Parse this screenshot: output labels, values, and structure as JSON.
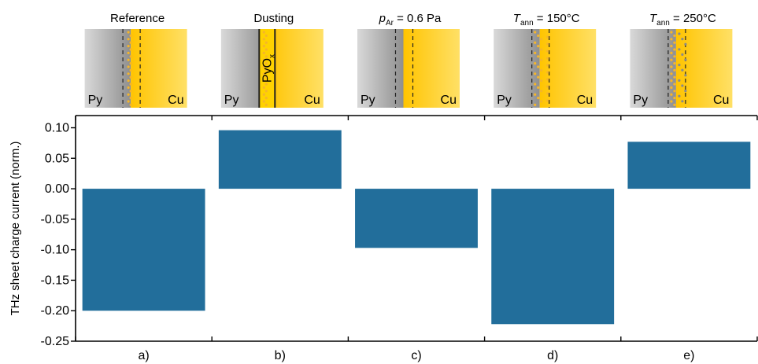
{
  "chart_data": {
    "type": "bar",
    "categories": [
      "a)",
      "b)",
      "c)",
      "d)",
      "e)"
    ],
    "values": [
      -0.2,
      0.096,
      -0.097,
      -0.222,
      0.077
    ],
    "ylabel": "THz sheet charge current (norm.)",
    "ylim": [
      -0.25,
      0.12
    ],
    "yticks": [
      0.1,
      0.05,
      0.0,
      -0.05,
      -0.1,
      -0.15,
      -0.2,
      -0.25
    ],
    "ytick_labels": [
      "0.10",
      "0.05",
      "0.00",
      "-0.05",
      "-0.10",
      "-0.15",
      "-0.20",
      "-0.25"
    ],
    "bar_color": "#226e9b",
    "grid": false
  },
  "panels": [
    {
      "title": "Reference",
      "left_label": "Py",
      "right_label": "Cu",
      "interface": "dots-inside"
    },
    {
      "title": "Dusting",
      "left_label": "Py",
      "right_label": "Cu",
      "interface": "dusting",
      "oxide_label": "PyO",
      "oxide_sub": "x"
    },
    {
      "title_main": "p",
      "title_sub": "Ar",
      "title_rest": " = 0.6 Pa",
      "left_label": "Py",
      "right_label": "Cu",
      "interface": "clean"
    },
    {
      "title_main": "T",
      "title_sub": "ann",
      "title_rest": " = 150°C",
      "left_label": "Py",
      "right_label": "Cu",
      "interface": "dots-spread"
    },
    {
      "title_main": "T",
      "title_sub": "ann",
      "title_rest": " = 250°C",
      "left_label": "Py",
      "right_label": "Cu",
      "interface": "dots-mixed"
    }
  ],
  "colors": {
    "py_gray": "#a8a8a8",
    "cu_yellow": "#ffd200",
    "dot_orange": "#f5b52a",
    "dot_gray": "#8a8a8a"
  }
}
